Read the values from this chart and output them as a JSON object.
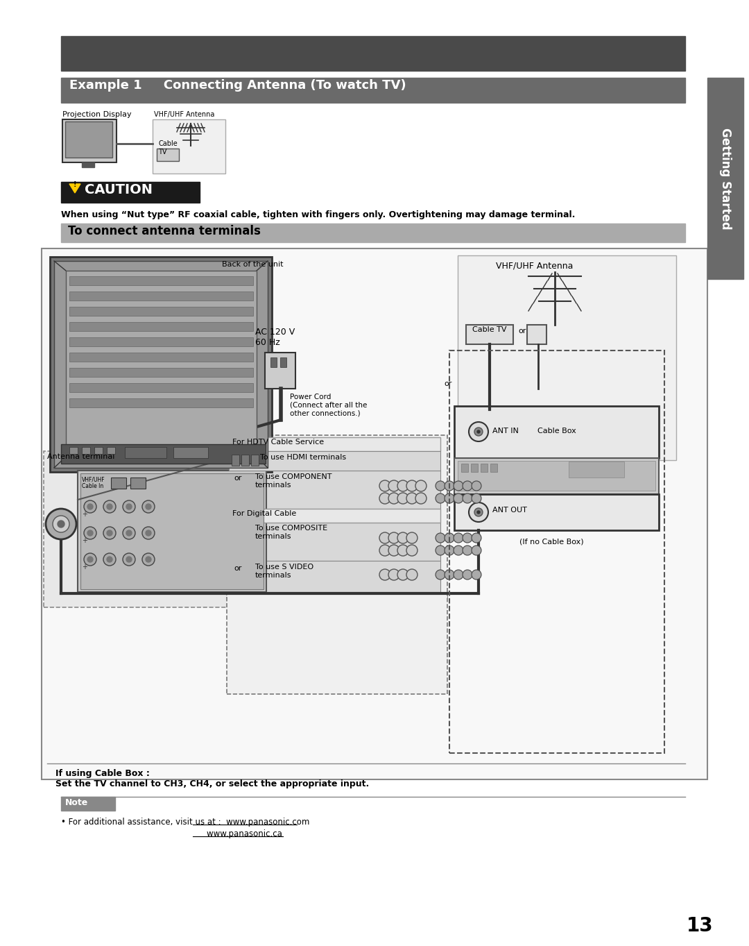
{
  "page_bg": "#ffffff",
  "dark_bar_color": "#4a4a4a",
  "example_bar_color": "#6a6a6a",
  "section_bar_color": "#888888",
  "caution_bg": "#1a1a1a",
  "note_bar_color": "#888888",
  "tab_color": "#6a6a6a",
  "title_text": "Example 1     Connecting Antenna (To watch TV)",
  "caution_text": "CAUTION",
  "caution_body": "When using “Nut type” RF coaxial cable, tighten with fingers only. Overtightening may damage terminal.",
  "section_text": "To connect antenna terminals",
  "sidebar_text": "Getting Started",
  "note_label": "Note",
  "note_body1": "• For additional assistance, visit us at :  www.panasonic.com",
  "note_body2": "                                                        www.panasonic.ca",
  "page_num": "13",
  "proj_label": "Projection Display",
  "vhf_label_small": "VHF/UHF Antenna",
  "cable_tv_label_small": "Cable\nTV",
  "back_label": "Back of the unit",
  "ac_label": "AC 120 V\n60 Hz",
  "power_cord_label": "Power Cord\n(Connect after all the\nother connections.)",
  "vhf_label_big": "VHF/UHF Antenna",
  "cable_tv_label_big": "Cable TV",
  "or_label1": "or",
  "ant_in_label": "ANT IN",
  "cable_box_label": "Cable Box",
  "ant_out_label": "ANT OUT",
  "no_cable_label": "(If no Cable Box)",
  "hdtv_label": "For HDTV Cable Service",
  "hdmi_label": "To use HDMI terminals",
  "component_label": "To use COMPONENT\nterminals",
  "digital_label": "For Digital Cable",
  "composite_label": "To use COMPOSITE\nterminals",
  "svideo_label": "To use S VIDEO\nterminals",
  "or_label2": "or",
  "or_label3": "or",
  "antenna_terminal_label": "Antenna terminal",
  "cable_box_note": "If using Cable Box :\nSet the TV channel to CH3, CH4, or select the appropriate input.",
  "or_right": "or"
}
